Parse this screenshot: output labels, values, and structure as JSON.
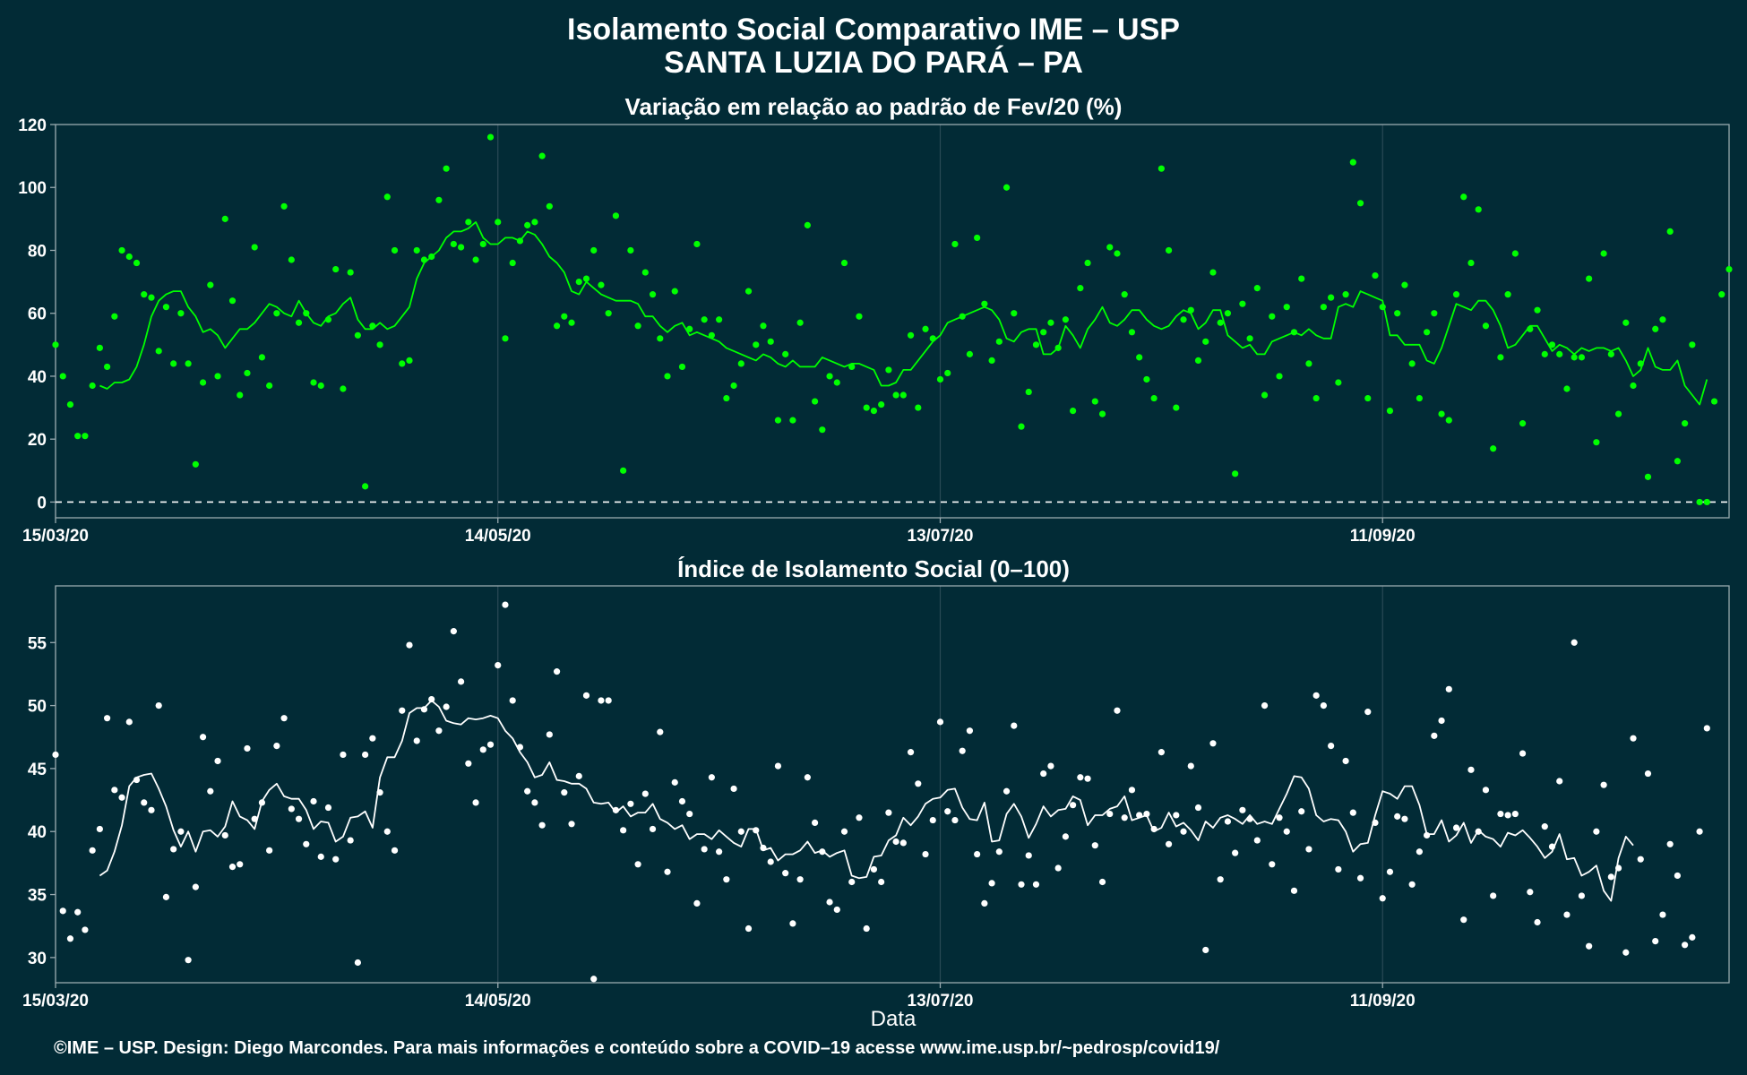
{
  "title_line1": "Isolamento Social Comparativo IME – USP",
  "title_line2": "SANTA LUZIA DO PARÁ – PA",
  "xlabel": "Data",
  "caption": "©IME – USP. Design: Diego Marcondes. Para mais informações e conteúdo sobre a COVID–19 acesse www.ime.usp.br/~pedrosp/covid19/",
  "colors": {
    "background": "#022b36",
    "panel_border": "#9aaab0",
    "gridline": "#2a4a56",
    "series_top": "#00ff00",
    "series_bottom": "#ffffff",
    "reference_line": "#ffffff"
  },
  "chart_data": [
    {
      "type": "scatter",
      "title": "Variação em relação ao padrão de Fev/20 (%)",
      "x_start": "15/03/20",
      "x_ticks": [
        "15/03/20",
        "14/05/20",
        "13/07/20",
        "11/09/20"
      ],
      "x_tick_days": [
        0,
        60,
        120,
        180
      ],
      "xlim_days": [
        0,
        227
      ],
      "ylim": [
        -5,
        120
      ],
      "y_ticks": [
        0,
        20,
        40,
        60,
        80,
        100,
        120
      ],
      "reference_line_y": 0,
      "grid": true,
      "series": [
        {
          "kind": "points",
          "values": [
            50,
            40,
            31,
            21,
            21,
            37,
            49,
            43,
            59,
            80,
            78,
            76,
            66,
            65,
            48,
            62,
            44,
            60,
            44,
            12,
            38,
            69,
            40,
            90,
            64,
            34,
            41,
            81,
            46,
            37,
            60,
            94,
            77,
            57,
            60,
            38,
            37,
            58,
            74,
            36,
            73,
            53,
            5,
            56,
            50,
            97,
            80,
            44,
            45,
            80,
            77,
            78,
            96,
            106,
            82,
            81,
            89,
            77,
            82,
            116,
            89,
            52,
            76,
            83,
            88,
            89,
            110,
            94,
            56,
            59,
            57,
            70,
            71,
            80,
            69,
            60,
            91,
            10,
            80,
            56,
            73,
            66,
            52,
            40,
            67,
            43,
            55,
            82,
            58,
            53,
            58,
            33,
            37,
            44,
            67,
            50,
            56,
            51,
            26,
            47,
            26,
            57,
            88,
            32,
            23,
            40,
            38,
            76,
            43,
            59,
            30,
            29,
            31,
            42,
            34,
            34,
            53,
            30,
            55,
            52,
            39,
            41,
            82,
            59,
            47,
            84,
            63,
            45,
            51,
            100,
            60,
            24,
            35,
            50,
            54,
            57,
            49,
            58,
            29,
            68,
            76,
            32,
            28,
            81,
            79,
            66,
            54,
            46,
            39,
            33,
            106,
            80,
            30,
            58,
            61,
            45,
            51,
            73,
            57,
            60,
            9,
            63,
            52,
            68,
            34,
            59,
            40,
            62,
            54,
            71,
            44,
            33,
            62,
            65,
            38,
            66,
            108,
            95,
            33,
            72,
            62,
            29,
            60,
            69,
            44,
            33,
            54,
            60,
            28,
            26,
            66,
            97,
            76,
            93,
            56,
            17,
            46,
            66,
            79,
            25,
            55,
            61,
            47,
            50,
            47,
            36,
            46,
            46,
            71,
            19,
            79,
            47,
            28,
            57,
            37,
            44,
            8,
            55,
            58,
            86,
            13,
            25,
            50,
            0,
            0,
            32,
            66,
            74
          ],
          "rolling_mean": [
            null,
            null,
            null,
            null,
            null,
            null,
            37,
            36,
            38,
            38,
            39,
            43,
            50,
            59,
            64,
            66,
            67,
            67,
            62,
            59,
            54,
            55,
            53,
            49,
            52,
            55,
            55,
            57,
            60,
            63,
            62,
            60,
            59,
            64,
            60,
            57,
            56,
            59,
            60,
            63,
            65,
            58,
            55,
            55,
            57,
            55,
            56,
            59,
            62,
            71,
            76,
            78,
            80,
            84,
            86,
            86,
            87,
            89,
            84,
            82,
            82,
            84,
            84,
            83,
            86,
            85,
            82,
            78,
            76,
            73,
            67,
            66,
            70,
            68,
            66,
            65,
            64,
            64,
            64,
            63,
            59,
            59,
            56,
            54,
            56,
            57,
            53,
            54,
            53,
            52,
            51,
            49,
            48,
            47,
            46,
            45,
            47,
            46,
            44,
            43,
            45,
            43,
            43,
            43,
            46,
            45,
            44,
            43,
            44,
            44,
            43,
            42,
            37,
            37,
            38,
            42,
            42,
            45,
            48,
            51,
            53,
            57,
            58,
            59,
            60,
            61,
            62,
            61,
            58,
            52,
            51,
            54,
            55,
            55,
            47,
            47,
            49,
            56,
            53,
            49,
            55,
            58,
            62,
            57,
            56,
            58,
            61,
            61,
            58,
            56,
            55,
            56,
            59,
            61,
            60,
            55,
            57,
            61,
            61,
            53,
            51,
            49,
            50,
            47,
            47,
            51,
            52,
            53,
            54,
            53,
            55,
            53,
            52,
            52,
            62,
            63,
            62,
            67,
            66,
            65,
            64,
            53,
            53,
            50,
            50,
            50,
            45,
            44,
            49,
            56,
            63,
            62,
            61,
            64,
            64,
            61,
            56,
            49,
            50,
            53,
            56,
            56,
            52,
            48,
            50,
            49,
            47,
            49,
            48,
            49,
            49,
            48,
            49,
            45,
            40,
            42,
            49,
            43,
            42,
            42,
            45,
            37,
            34,
            31,
            39
          ]
        }
      ]
    },
    {
      "type": "scatter",
      "title": "Índice de Isolamento Social (0–100)",
      "x_start": "15/03/20",
      "x_ticks": [
        "15/03/20",
        "14/05/20",
        "13/07/20",
        "11/09/20"
      ],
      "x_tick_days": [
        0,
        60,
        120,
        180
      ],
      "xlim_days": [
        0,
        227
      ],
      "ylim": [
        28,
        59.5
      ],
      "y_ticks": [
        30,
        35,
        40,
        45,
        50,
        55
      ],
      "grid": true,
      "series": [
        {
          "kind": "points",
          "values": [
            46.1,
            33.7,
            31.5,
            33.6,
            32.2,
            38.5,
            40.2,
            49.0,
            43.3,
            42.7,
            48.7,
            44.1,
            42.3,
            41.7,
            50.0,
            34.8,
            38.6,
            40.0,
            29.8,
            35.6,
            47.5,
            43.2,
            45.6,
            39.7,
            37.2,
            37.4,
            46.6,
            41.0,
            42.3,
            38.5,
            46.8,
            49.0,
            41.8,
            41.0,
            39.0,
            42.4,
            38.0,
            41.9,
            37.8,
            46.1,
            39.3,
            29.6,
            46.1,
            47.4,
            43.1,
            40.0,
            38.5,
            49.6,
            54.8,
            47.2,
            49.7,
            50.5,
            48.0,
            49.9,
            55.9,
            51.9,
            45.4,
            42.3,
            46.5,
            46.9,
            53.2,
            58.0,
            50.4,
            46.7,
            43.2,
            42.3,
            40.5,
            47.7,
            52.7,
            43.1,
            40.6,
            44.4,
            50.8,
            28.3,
            50.4,
            50.4,
            41.7,
            40.1,
            42.2,
            37.4,
            43.0,
            40.2,
            47.9,
            36.8,
            43.9,
            42.4,
            41.4,
            34.3,
            38.6,
            44.3,
            38.4,
            36.2,
            43.4,
            40.0,
            32.3,
            40.1,
            38.7,
            37.6,
            45.2,
            36.7,
            32.7,
            36.2,
            44.3,
            40.7,
            38.4,
            34.4,
            33.8,
            40.0,
            36.0,
            41.1,
            32.3,
            37.0,
            36.0,
            41.5,
            39.2,
            39.1,
            46.3,
            43.8,
            38.2,
            40.9,
            48.7,
            41.6,
            40.9,
            46.4,
            48.0,
            38.2,
            34.3,
            35.9,
            38.4,
            43.2,
            48.4,
            35.8,
            38.1,
            35.8,
            44.6,
            45.2,
            37.1,
            39.6,
            42.1,
            44.3,
            44.2,
            38.9,
            36.0,
            41.4,
            49.6,
            41.1,
            43.3,
            41.3,
            41.4,
            40.2,
            46.3,
            39.0,
            41.3,
            40.0,
            45.2,
            41.9,
            30.6,
            47.0,
            36.2,
            40.8,
            38.3,
            41.7,
            41.0,
            39.3,
            50.0,
            37.4,
            41.1,
            40.0,
            35.3,
            41.6,
            38.6,
            50.8,
            50.0,
            46.8,
            37.0,
            45.6,
            41.5,
            36.3,
            49.5,
            40.7,
            34.7,
            36.8,
            41.2,
            41.0,
            35.8,
            38.4,
            39.7,
            47.6,
            48.8,
            51.3,
            40.3,
            33.0,
            44.9,
            40.0,
            43.3,
            34.9,
            41.4,
            41.3,
            41.4,
            46.2,
            35.2,
            32.8,
            40.4,
            38.8,
            44.0,
            33.4,
            55.0,
            34.9,
            30.9,
            40.0,
            43.7,
            36.4,
            37.1,
            30.4,
            47.4,
            37.8,
            44.6,
            31.3,
            33.4,
            39.0,
            36.5,
            31.0,
            31.6,
            40.0,
            48.2
          ]
        },
        {
          "kind": "line",
          "name": "rolling_mean",
          "values": [
            null,
            null,
            null,
            null,
            null,
            null,
            36.5,
            36.9,
            38.4,
            40.5,
            43.6,
            44.3,
            44.5,
            44.6,
            43.4,
            42.0,
            40.1,
            38.8,
            40.0,
            38.4,
            40.0,
            40.1,
            39.6,
            40.4,
            42.4,
            41.2,
            40.9,
            40.2,
            42.4,
            43.3,
            43.8,
            42.8,
            42.6,
            42.6,
            41.7,
            40.2,
            40.8,
            40.7,
            39.2,
            39.6,
            41.1,
            41.2,
            41.6,
            40.3,
            44.3,
            45.9,
            45.9,
            47.2,
            49.4,
            49.8,
            49.8,
            50.4,
            49.9,
            48.8,
            48.6,
            48.5,
            49.0,
            48.9,
            49.0,
            49.2,
            49.0,
            48.0,
            47.4,
            46.3,
            45.5,
            44.3,
            44.5,
            45.5,
            44.1,
            44.0,
            43.8,
            43.8,
            43.4,
            42.3,
            42.2,
            42.3,
            41.5,
            42.0,
            41.2,
            41.5,
            41.5,
            42.2,
            41.0,
            40.7,
            40.2,
            40.5,
            39.4,
            39.8,
            39.8,
            39.4,
            40.1,
            39.6,
            39.1,
            38.8,
            40.2,
            40.2,
            38.5,
            38.7,
            37.7,
            38.2,
            38.2,
            38.5,
            39.2,
            38.3,
            38.5,
            38.0,
            38.3,
            38.5,
            36.5,
            36.3,
            36.4,
            38.0,
            38.1,
            39.3,
            39.7,
            41.1,
            40.5,
            41.2,
            42.2,
            42.6,
            42.7,
            43.3,
            43.4,
            41.9,
            41.0,
            40.9,
            42.3,
            39.2,
            39.3,
            41.4,
            42.2,
            41.2,
            39.5,
            40.6,
            42.0,
            41.2,
            41.7,
            41.8,
            42.8,
            42.5,
            40.5,
            41.3,
            41.3,
            41.8,
            42.0,
            42.8,
            40.9,
            41.1,
            41.3,
            40.0,
            40.3,
            41.5,
            40.4,
            40.7,
            40.1,
            39.3,
            40.8,
            40.3,
            41.1,
            41.3,
            41.0,
            40.6,
            41.3,
            40.6,
            40.8,
            40.6,
            41.8,
            43.0,
            44.4,
            44.3,
            43.4,
            41.3,
            40.8,
            41.0,
            40.9,
            40.0,
            38.4,
            39.0,
            39.1,
            41.3,
            43.2,
            43.0,
            42.6,
            43.6,
            43.6,
            42.1,
            39.8,
            39.8,
            40.9,
            39.2,
            39.7,
            40.7,
            39.1,
            40.1,
            39.6,
            39.4,
            38.8,
            39.9,
            39.7,
            40.1,
            39.5,
            38.8,
            37.9,
            38.4,
            39.8,
            37.8,
            37.9,
            36.5,
            36.8,
            37.3,
            35.3,
            34.5,
            37.9,
            39.6,
            38.9
          ]
        }
      ]
    }
  ]
}
